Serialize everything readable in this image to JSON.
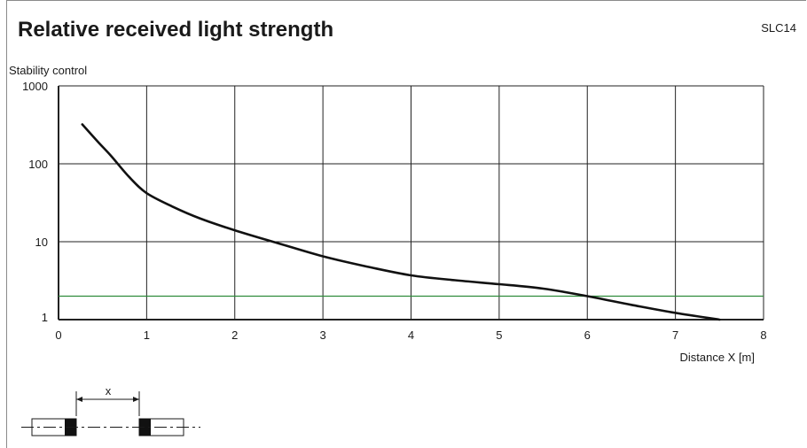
{
  "page": {
    "title": "Relative received light strength",
    "model_code": "SLC14"
  },
  "chart_data": {
    "type": "line",
    "title": "Relative received light strength",
    "xlabel": "Distance X [m]",
    "ylabel": "Stability control",
    "xlim": [
      0,
      8
    ],
    "ylim": [
      1,
      1000
    ],
    "yscale": "log",
    "grid": true,
    "x_ticks": [
      "0",
      "1",
      "2",
      "3",
      "4",
      "5",
      "6",
      "7",
      "8"
    ],
    "y_ticks": [
      {
        "value": 1,
        "label": "1"
      },
      {
        "value": 10,
        "label": "10"
      },
      {
        "value": 100,
        "label": "100"
      },
      {
        "value": 1000,
        "label": "1000"
      }
    ],
    "series": [
      {
        "color": "#111111",
        "x": [
          0.27,
          0.45,
          0.6,
          0.8,
          1.0,
          1.3,
          1.6,
          2.0,
          2.5,
          3.0,
          3.5,
          4.0,
          4.5,
          5.0,
          5.5,
          6.0,
          6.5,
          7.0,
          7.5
        ],
        "y": [
          320,
          190,
          125,
          68,
          42,
          28,
          20,
          14,
          9.5,
          6.5,
          4.8,
          3.7,
          3.2,
          2.85,
          2.5,
          2.0,
          1.55,
          1.22,
          1.0
        ]
      }
    ],
    "threshold": {
      "value": 2,
      "color": "#2e8b3a"
    }
  },
  "diagram": {
    "distance_label": "x"
  },
  "colors": {
    "grid": "#222222",
    "curve": "#111111",
    "threshold": "#2e8b3a"
  }
}
